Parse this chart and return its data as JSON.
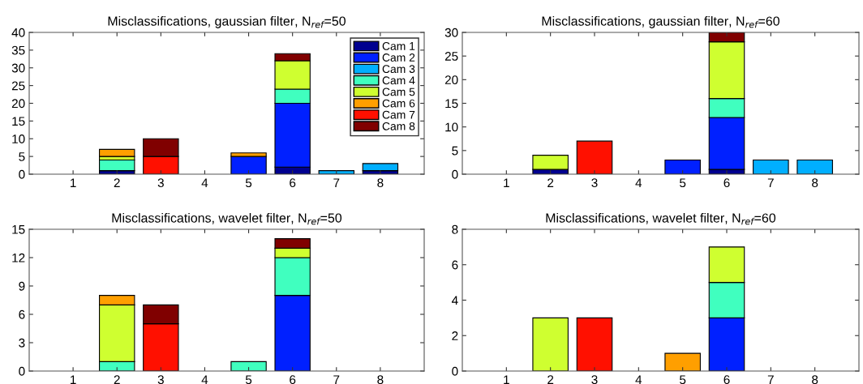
{
  "chart_data": [
    {
      "type": "bar",
      "stacked": true,
      "title": "Misclassifications, gaussian filter, N$_{ref}$=50",
      "categories": [
        "1",
        "2",
        "3",
        "4",
        "5",
        "6",
        "7",
        "8"
      ],
      "ylim": [
        0,
        40
      ],
      "yticks": [
        0,
        5,
        10,
        15,
        20,
        25,
        30,
        35,
        40
      ],
      "grid": false,
      "legend": "top right",
      "series": [
        {
          "name": "Cam 1",
          "color": "#00008f",
          "values": [
            0,
            1,
            0,
            0,
            0,
            2,
            0,
            1
          ]
        },
        {
          "name": "Cam 2",
          "color": "#0020ff",
          "values": [
            0,
            0,
            0,
            0,
            5,
            18,
            0,
            0
          ]
        },
        {
          "name": "Cam 3",
          "color": "#00afff",
          "values": [
            0,
            0,
            0,
            0,
            0,
            0,
            1,
            2
          ]
        },
        {
          "name": "Cam 4",
          "color": "#40ffbf",
          "values": [
            0,
            3,
            0,
            0,
            0,
            4,
            0,
            0
          ]
        },
        {
          "name": "Cam 5",
          "color": "#cfff30",
          "values": [
            0,
            1,
            0,
            0,
            0,
            8,
            0,
            0
          ]
        },
        {
          "name": "Cam 6",
          "color": "#ff9f00",
          "values": [
            0,
            2,
            0,
            0,
            1,
            0,
            0,
            0
          ]
        },
        {
          "name": "Cam 7",
          "color": "#ff1000",
          "values": [
            0,
            0,
            5,
            0,
            0,
            0,
            0,
            0
          ]
        },
        {
          "name": "Cam 8",
          "color": "#800000",
          "values": [
            0,
            0,
            5,
            0,
            0,
            2,
            0,
            0
          ]
        }
      ]
    },
    {
      "type": "bar",
      "stacked": true,
      "title": "Misclassifications, gaussian filter, N$_{ref}$=60",
      "categories": [
        "1",
        "2",
        "3",
        "4",
        "5",
        "6",
        "7",
        "8"
      ],
      "ylim": [
        0,
        30
      ],
      "yticks": [
        0,
        5,
        10,
        15,
        20,
        25,
        30
      ],
      "grid": false,
      "series": [
        {
          "color": "#00008f",
          "values": [
            0,
            1,
            0,
            0,
            0,
            1,
            0,
            0
          ]
        },
        {
          "color": "#0020ff",
          "values": [
            0,
            0,
            0,
            0,
            3,
            11,
            0,
            0
          ]
        },
        {
          "color": "#00afff",
          "values": [
            0,
            0,
            0,
            0,
            0,
            0,
            3,
            3
          ]
        },
        {
          "color": "#40ffbf",
          "values": [
            0,
            0,
            0,
            0,
            0,
            4,
            0,
            0
          ]
        },
        {
          "color": "#cfff30",
          "values": [
            0,
            3,
            0,
            0,
            0,
            12,
            0,
            0
          ]
        },
        {
          "color": "#ff9f00",
          "values": [
            0,
            0,
            0,
            0,
            0,
            0,
            0,
            0
          ]
        },
        {
          "color": "#ff1000",
          "values": [
            0,
            0,
            7,
            0,
            0,
            0,
            0,
            0
          ]
        },
        {
          "color": "#800000",
          "values": [
            0,
            0,
            0,
            0,
            0,
            2,
            0,
            0
          ]
        }
      ]
    },
    {
      "type": "bar",
      "stacked": true,
      "title": "Misclassifications, wavelet filter, N$_{ref}$=50",
      "categories": [
        "1",
        "2",
        "3",
        "4",
        "5",
        "6",
        "7",
        "8"
      ],
      "ylim": [
        0,
        15
      ],
      "yticks": [
        0,
        3,
        6,
        9,
        12,
        15
      ],
      "grid": false,
      "series": [
        {
          "color": "#00008f",
          "values": [
            0,
            0,
            0,
            0,
            0,
            0,
            0,
            0
          ]
        },
        {
          "color": "#0020ff",
          "values": [
            0,
            0,
            0,
            0,
            0,
            8,
            0,
            0
          ]
        },
        {
          "color": "#00afff",
          "values": [
            0,
            0,
            0,
            0,
            0,
            0,
            0,
            0
          ]
        },
        {
          "color": "#40ffbf",
          "values": [
            0,
            1,
            0,
            0,
            1,
            4,
            0,
            0
          ]
        },
        {
          "color": "#cfff30",
          "values": [
            0,
            6,
            0,
            0,
            0,
            1,
            0,
            0
          ]
        },
        {
          "color": "#ff9f00",
          "values": [
            0,
            1,
            0,
            0,
            0,
            0,
            0,
            0
          ]
        },
        {
          "color": "#ff1000",
          "values": [
            0,
            0,
            5,
            0,
            0,
            0,
            0,
            0
          ]
        },
        {
          "color": "#800000",
          "values": [
            0,
            0,
            2,
            0,
            0,
            1,
            0,
            0
          ]
        }
      ]
    },
    {
      "type": "bar",
      "stacked": true,
      "title": "Misclassifications, wavelet filter, N$_{ref}$=60",
      "categories": [
        "1",
        "2",
        "3",
        "4",
        "5",
        "6",
        "7",
        "8"
      ],
      "ylim": [
        0,
        8
      ],
      "yticks": [
        0,
        2,
        4,
        6,
        8
      ],
      "grid": false,
      "series": [
        {
          "color": "#00008f",
          "values": [
            0,
            0,
            0,
            0,
            0,
            0,
            0,
            0
          ]
        },
        {
          "color": "#0020ff",
          "values": [
            0,
            0,
            0,
            0,
            0,
            3,
            0,
            0
          ]
        },
        {
          "color": "#00afff",
          "values": [
            0,
            0,
            0,
            0,
            0,
            0,
            0,
            0
          ]
        },
        {
          "color": "#40ffbf",
          "values": [
            0,
            0,
            0,
            0,
            0,
            2,
            0,
            0
          ]
        },
        {
          "color": "#cfff30",
          "values": [
            0,
            3,
            0,
            0,
            0,
            2,
            0,
            0
          ]
        },
        {
          "color": "#ff9f00",
          "values": [
            0,
            0,
            0,
            0,
            1,
            0,
            0,
            0
          ]
        },
        {
          "color": "#ff1000",
          "values": [
            0,
            0,
            3,
            0,
            0,
            0,
            0,
            0
          ]
        },
        {
          "color": "#800000",
          "values": [
            0,
            0,
            0,
            0,
            0,
            0,
            0,
            0
          ]
        }
      ]
    }
  ]
}
